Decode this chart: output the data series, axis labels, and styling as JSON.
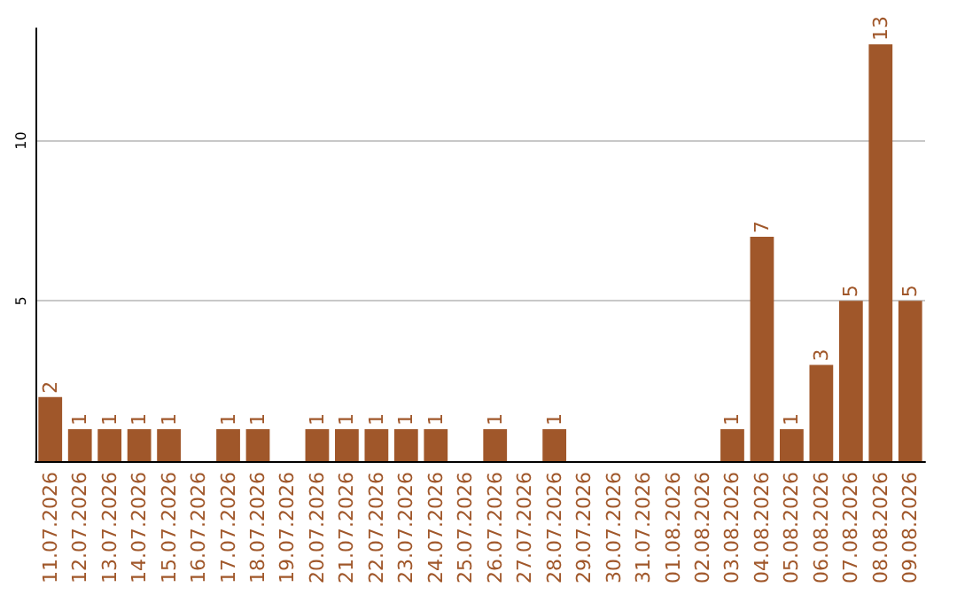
{
  "chart_data": {
    "type": "bar",
    "categories": [
      "11.07.2026",
      "12.07.2026",
      "13.07.2026",
      "14.07.2026",
      "15.07.2026",
      "16.07.2026",
      "17.07.2026",
      "18.07.2026",
      "19.07.2026",
      "20.07.2026",
      "21.07.2026",
      "22.07.2026",
      "23.07.2026",
      "24.07.2026",
      "25.07.2026",
      "26.07.2026",
      "27.07.2026",
      "28.07.2026",
      "29.07.2026",
      "30.07.2026",
      "31.07.2026",
      "01.08.2026",
      "02.08.2026",
      "03.08.2026",
      "04.08.2026",
      "05.08.2026",
      "06.08.2026",
      "07.08.2026",
      "08.08.2026",
      "09.08.2026"
    ],
    "values": [
      2,
      1,
      1,
      1,
      1,
      0,
      1,
      1,
      0,
      1,
      1,
      1,
      1,
      1,
      0,
      1,
      0,
      1,
      0,
      0,
      0,
      0,
      0,
      1,
      7,
      1,
      3,
      5,
      13,
      5
    ],
    "value_labels": [
      "2",
      "1",
      "1",
      "1",
      "1",
      null,
      "1",
      "1",
      null,
      "1",
      "1",
      "1",
      "1",
      "1",
      null,
      "1",
      null,
      "1",
      null,
      null,
      null,
      null,
      null,
      "1",
      "7",
      "1",
      "3",
      "5",
      "13",
      "5"
    ],
    "color": "#a0572a",
    "ylim": [
      0,
      13.5
    ],
    "yticks": [
      5,
      10
    ],
    "grid": "y"
  }
}
